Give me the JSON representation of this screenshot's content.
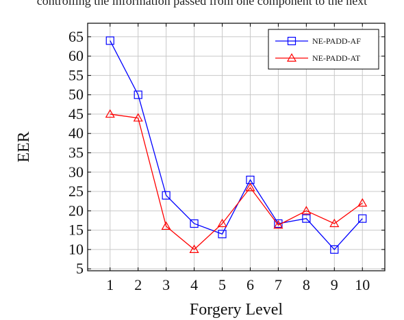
{
  "header": {
    "caption_fragment": "controlling the information passed from one component to the next"
  },
  "chart_data": {
    "type": "line",
    "xlabel": "Forgery Level",
    "ylabel": "EER",
    "x": [
      1,
      2,
      3,
      4,
      5,
      6,
      7,
      8,
      9,
      10
    ],
    "xlim": [
      0.2,
      10.8
    ],
    "ylim": [
      4.5,
      68.5
    ],
    "yticks": [
      5,
      10,
      15,
      20,
      25,
      30,
      35,
      40,
      45,
      50,
      55,
      60,
      65
    ],
    "grid": true,
    "legend_position": "top-right",
    "series": [
      {
        "name": "NE-PADD-AF",
        "values": [
          64,
          50,
          24,
          16.7,
          14,
          28,
          16.7,
          18,
          10,
          18
        ],
        "color": "#0000ff",
        "marker": "square"
      },
      {
        "name": "NE-PADD-AT",
        "values": [
          45,
          44,
          16,
          10,
          16.7,
          26,
          16.3,
          20,
          16.7,
          22
        ],
        "color": "#ff0000",
        "marker": "triangle"
      }
    ]
  }
}
